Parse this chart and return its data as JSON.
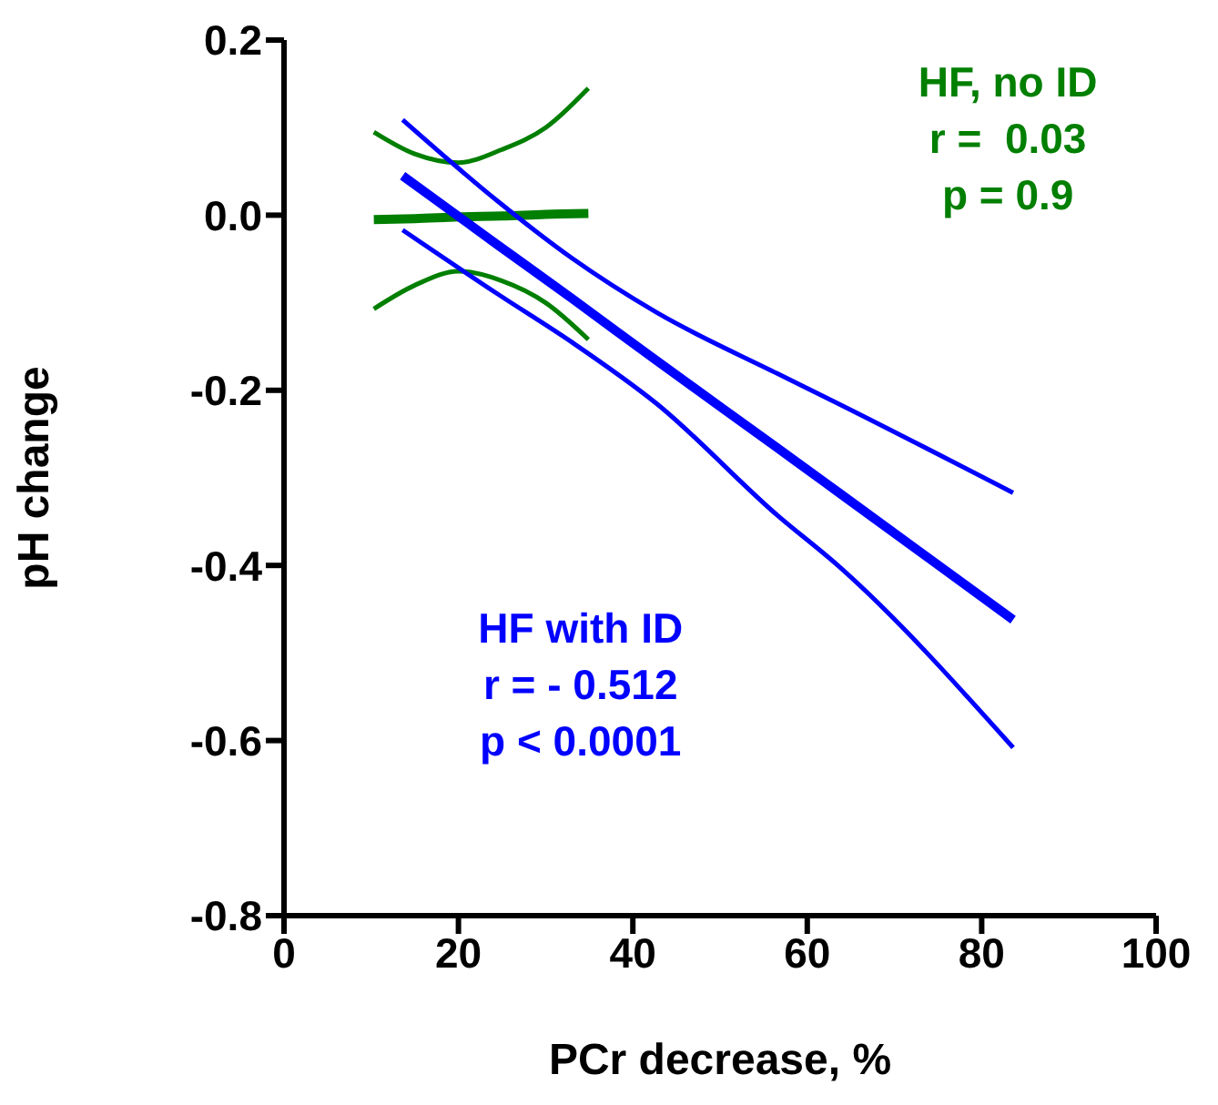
{
  "chart_data": {
    "type": "line",
    "xlabel": "PCr decrease, %",
    "ylabel": "pH change",
    "xlim": [
      0,
      100
    ],
    "xticks": [
      0,
      20,
      40,
      60,
      80,
      100
    ],
    "ylim": [
      -0.8,
      0.2
    ],
    "yticks": [
      {
        "value": 0.2,
        "label": "0.2"
      },
      {
        "value": 0,
        "label": "0.0"
      },
      {
        "value": -0.2,
        "label": "-0.2"
      },
      {
        "value": -0.4,
        "label": "-0.4"
      },
      {
        "value": -0.6,
        "label": "-0.6"
      },
      {
        "value": -0.8,
        "label": "-0.8"
      }
    ],
    "marker": "none",
    "line_style": "solid",
    "series": [
      {
        "color": "#007f00",
        "x": [
          10.3,
          15,
          20,
          25,
          30,
          34.9
        ],
        "values": [
          -0.005,
          -0.004,
          -0.002,
          -0.001,
          0.001,
          0.002
        ]
      },
      {
        "color": "#007f00",
        "x": [
          10.3,
          15,
          20,
          25,
          30,
          34.9
        ],
        "values": [
          -0.107,
          -0.08,
          -0.064,
          -0.075,
          -0.1,
          -0.142
        ]
      },
      {
        "color": "#007f00",
        "x": [
          10.3,
          15,
          20,
          25,
          30,
          34.9
        ],
        "values": [
          0.095,
          0.07,
          0.06,
          0.075,
          0.1,
          0.145
        ]
      },
      {
        "color": "#0000ff",
        "x": [
          13.6,
          24.5,
          33,
          42.7,
          56.6,
          63.5,
          83.6
        ],
        "values": [
          0.045,
          -0.034,
          -0.095,
          -0.166,
          -0.266,
          -0.316,
          -0.462
        ]
      },
      {
        "color": "#0000ff",
        "x": [
          13.6,
          24.5,
          33,
          42.7,
          56.6,
          63.5,
          83.6
        ],
        "values": [
          -0.017,
          -0.09,
          -0.145,
          -0.215,
          -0.343,
          -0.4,
          -0.608
        ]
      },
      {
        "color": "#0000ff",
        "x": [
          13.6,
          24.5,
          33,
          42.7,
          56.6,
          63.5,
          83.6
        ],
        "values": [
          0.109,
          0.016,
          -0.049,
          -0.111,
          -0.181,
          -0.215,
          -0.317
        ]
      }
    ],
    "annotations": [
      "HF, no ID\nr =  0.03\np = 0.9",
      "HF with ID\nr = - 0.512\np < 0.0001"
    ]
  }
}
